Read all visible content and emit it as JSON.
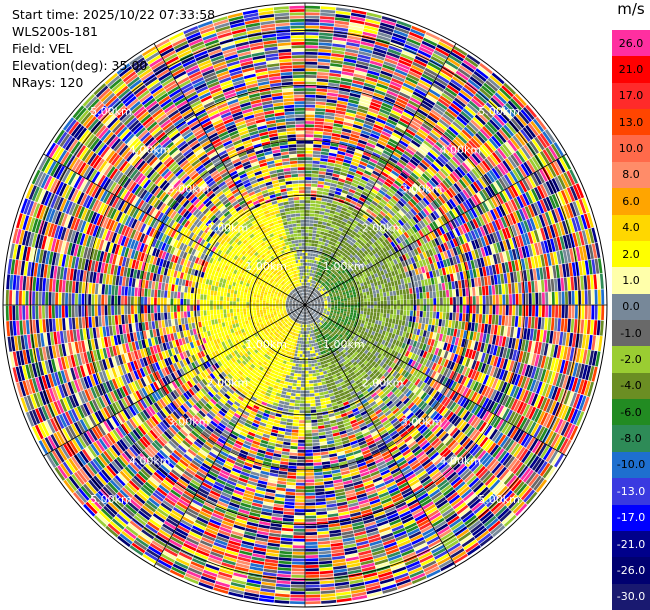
{
  "info": {
    "start_time": "Start time: 2025/10/22 07:33:58",
    "station": "WLS200s-181",
    "field": "Field: VEL",
    "elevation": "Elevation(deg): 35.00",
    "nrays": "NRays: 120"
  },
  "colorbar": {
    "unit": "m/s",
    "levels": [
      {
        "label": "26.0",
        "color": "#ff2fa0",
        "text": "#000"
      },
      {
        "label": "21.0",
        "color": "#ff0000",
        "text": "#000"
      },
      {
        "label": "17.0",
        "color": "#ff2a2a",
        "text": "#000"
      },
      {
        "label": "13.0",
        "color": "#ff4500",
        "text": "#000"
      },
      {
        "label": "10.0",
        "color": "#ff6a4a",
        "text": "#000"
      },
      {
        "label": "8.0",
        "color": "#ff8c69",
        "text": "#000"
      },
      {
        "label": "6.0",
        "color": "#ffa500",
        "text": "#000"
      },
      {
        "label": "4.0",
        "color": "#ffd700",
        "text": "#000"
      },
      {
        "label": "2.0",
        "color": "#ffff00",
        "text": "#000"
      },
      {
        "label": "1.0",
        "color": "#ffffaa",
        "text": "#000"
      },
      {
        "label": "0.0",
        "color": "#778899",
        "text": "#000"
      },
      {
        "label": "-1.0",
        "color": "#696969",
        "text": "#000"
      },
      {
        "label": "-2.0",
        "color": "#9acd32",
        "text": "#000"
      },
      {
        "label": "-4.0",
        "color": "#6b8e23",
        "text": "#000"
      },
      {
        "label": "-6.0",
        "color": "#228b22",
        "text": "#000"
      },
      {
        "label": "-8.0",
        "color": "#2e8b57",
        "text": "#000"
      },
      {
        "label": "-10.0",
        "color": "#1e6fcf",
        "text": "#000"
      },
      {
        "label": "-13.0",
        "color": "#3a3ae0",
        "text": "#fff"
      },
      {
        "label": "-17.0",
        "color": "#0000ff",
        "text": "#fff"
      },
      {
        "label": "-21.0",
        "color": "#00008b",
        "text": "#fff"
      },
      {
        "label": "-26.0",
        "color": "#000070",
        "text": "#fff"
      },
      {
        "label": "-30.0",
        "color": "#191970",
        "text": "#fff"
      }
    ]
  },
  "range_rings": [
    "1.00km",
    "2.00km",
    "3.00km",
    "4.00km",
    "5.00km"
  ],
  "chart_data": {
    "type": "heatmap",
    "description_type": "PPI velocity scan",
    "field": "VEL",
    "units": "m/s",
    "nrays": 120,
    "elevation_deg": 35.0,
    "max_range_km": 5.5,
    "range_ring_km": [
      1,
      2,
      3,
      4,
      5
    ],
    "colorbar_levels": [
      26.0,
      21.0,
      17.0,
      13.0,
      10.0,
      8.0,
      6.0,
      4.0,
      2.0,
      1.0,
      0.0,
      -1.0,
      -2.0,
      -4.0,
      -6.0,
      -8.0,
      -10.0,
      -13.0,
      -17.0,
      -21.0,
      -26.0,
      -30.0
    ],
    "pattern": {
      "inner_gray_km": 1.0,
      "yellow_ring_km": [
        0.8,
        2.0
      ],
      "green_ring_km": [
        1.0,
        2.6
      ],
      "noise_beyond_km": 2.6
    }
  }
}
